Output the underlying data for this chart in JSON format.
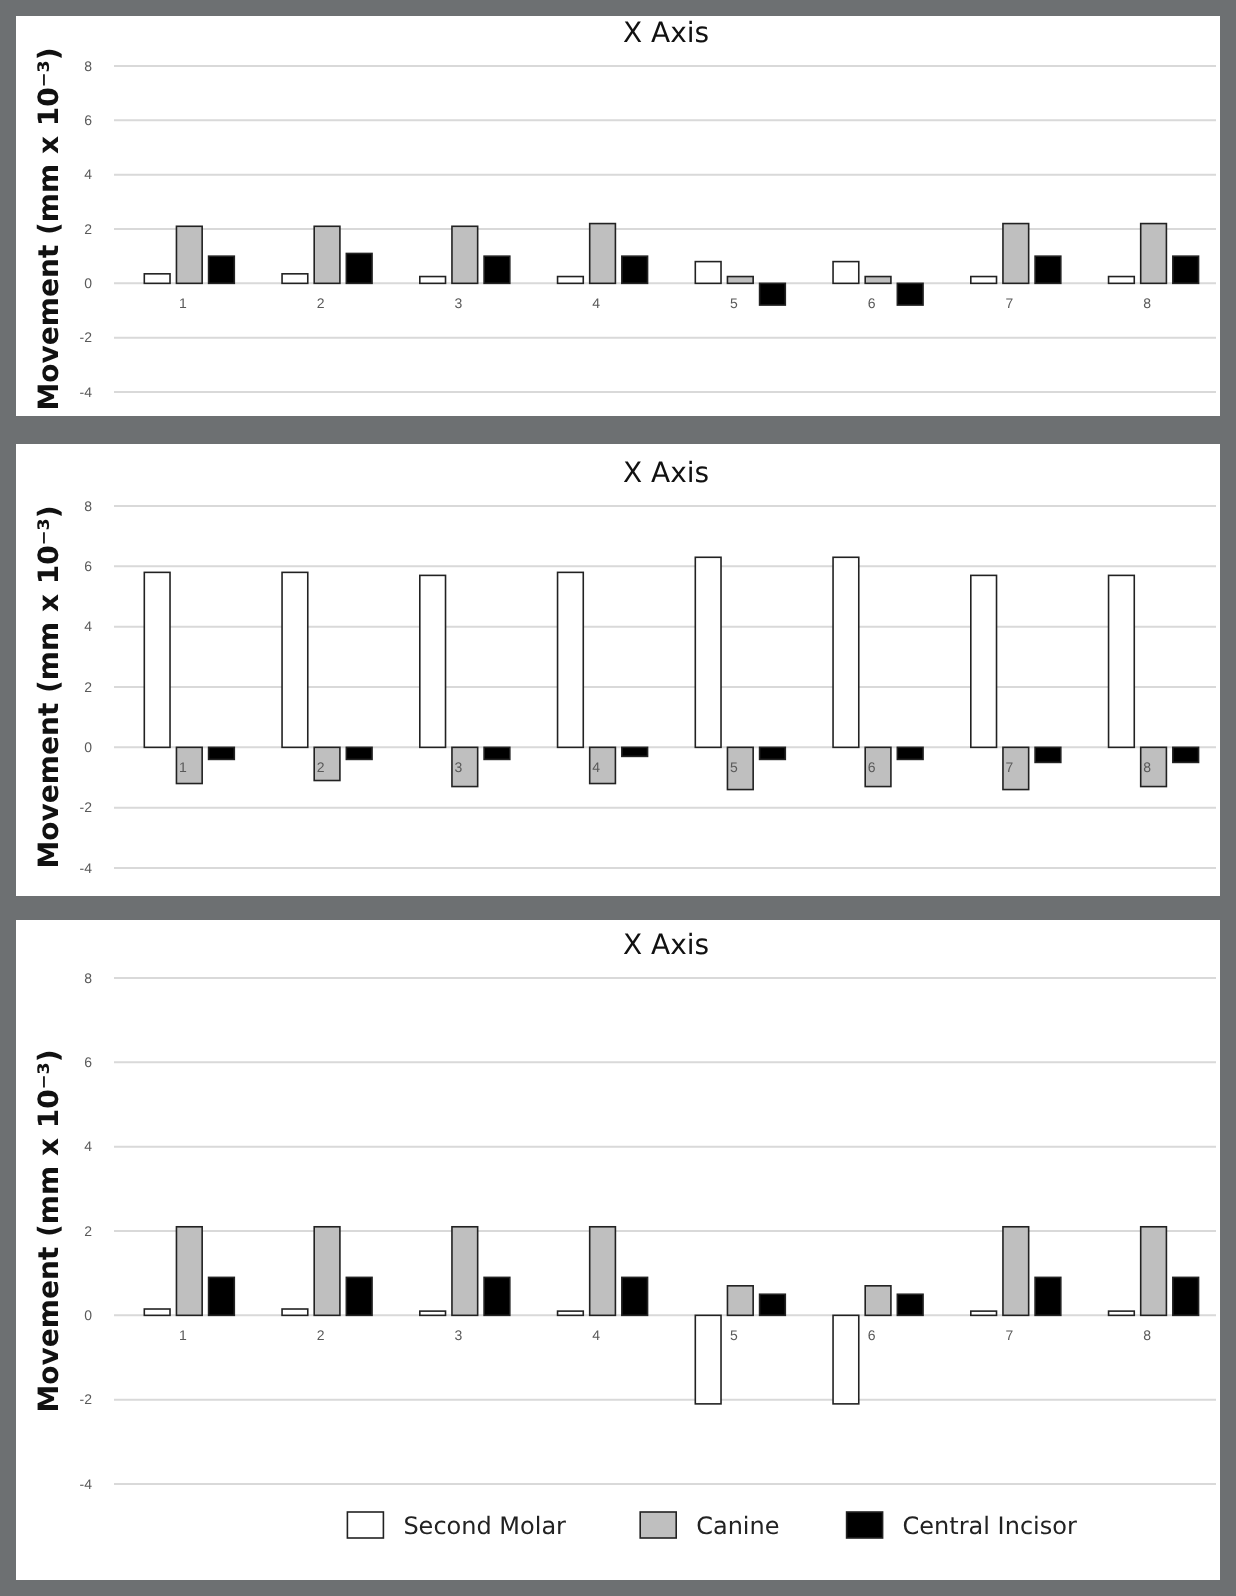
{
  "chart_data": [
    {
      "type": "bar",
      "title": "X Axis",
      "ylabel": "Movement (mm x 10⁻³)",
      "categories": [
        "1",
        "2",
        "3",
        "4",
        "5",
        "6",
        "7",
        "8"
      ],
      "ylim": [
        -4,
        8
      ],
      "yticks": [
        -4,
        -2,
        0,
        2,
        4,
        6,
        8
      ],
      "grid": "y",
      "legend": false,
      "series": [
        {
          "color": "#ffffff",
          "values": [
            0.35,
            0.35,
            0.25,
            0.25,
            0.8,
            0.8,
            0.25,
            0.25
          ]
        },
        {
          "color": "#bfbfbf",
          "values": [
            2.1,
            2.1,
            2.1,
            2.2,
            0.25,
            0.25,
            2.2,
            2.2
          ]
        },
        {
          "color": "#000000",
          "values": [
            1,
            1.1,
            1,
            1,
            -0.8,
            -0.8,
            1,
            1
          ]
        }
      ]
    },
    {
      "type": "bar",
      "title": "X Axis",
      "ylabel": "Movement (mm x 10⁻³)",
      "categories": [
        "1",
        "2",
        "3",
        "4",
        "5",
        "6",
        "7",
        "8"
      ],
      "ylim": [
        -4,
        8
      ],
      "yticks": [
        -4,
        -2,
        0,
        2,
        4,
        6,
        8
      ],
      "grid": "y",
      "legend": false,
      "series": [
        {
          "color": "#ffffff",
          "values": [
            5.8,
            5.8,
            5.7,
            5.8,
            6.3,
            6.3,
            5.7,
            5.7
          ]
        },
        {
          "color": "#bfbfbf",
          "values": [
            -1.2,
            -1.1,
            -1.3,
            -1.2,
            -1.4,
            -1.3,
            -1.4,
            -1.3
          ]
        },
        {
          "color": "#000000",
          "values": [
            -0.4,
            -0.4,
            -0.4,
            -0.3,
            -0.4,
            -0.4,
            -0.5,
            -0.5
          ]
        }
      ]
    },
    {
      "type": "bar",
      "title": "X Axis",
      "ylabel": "Movement (mm x 10⁻³)",
      "categories": [
        "1",
        "2",
        "3",
        "4",
        "5",
        "6",
        "7",
        "8"
      ],
      "ylim": [
        -4,
        8
      ],
      "yticks": [
        -4,
        -2,
        0,
        2,
        4,
        6,
        8
      ],
      "grid": "y",
      "legend": "bottom",
      "series": [
        {
          "name": "Second Molar",
          "color": "#ffffff",
          "values": [
            0.15,
            0.15,
            0.1,
            0.1,
            -2.1,
            -2.1,
            0.1,
            0.1
          ]
        },
        {
          "name": "Canine",
          "color": "#bfbfbf",
          "values": [
            2.1,
            2.1,
            2.1,
            2.1,
            0.7,
            0.7,
            2.1,
            2.1
          ]
        },
        {
          "name": "Central Incisor",
          "color": "#000000",
          "values": [
            0.9,
            0.9,
            0.9,
            0.9,
            0.5,
            0.5,
            0.9,
            0.9
          ]
        }
      ]
    }
  ]
}
